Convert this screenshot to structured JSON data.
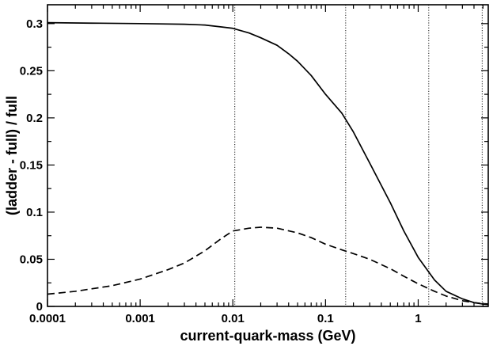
{
  "chart_data": {
    "type": "line",
    "title": "",
    "xlabel": "current-quark-mass (GeV)",
    "ylabel": "(ladder - full) / full",
    "xscale": "log",
    "xlim": [
      0.0001,
      5.7
    ],
    "ylim": [
      0,
      0.32
    ],
    "grid": false,
    "x_ticks": [
      {
        "value": 0.0001,
        "label": "0.0001"
      },
      {
        "value": 0.001,
        "label": "0.001"
      },
      {
        "value": 0.01,
        "label": "0.01"
      },
      {
        "value": 0.1,
        "label": "0.1"
      },
      {
        "value": 1,
        "label": "1"
      }
    ],
    "y_ticks": [
      {
        "value": 0,
        "label": "0"
      },
      {
        "value": 0.05,
        "label": "0.05"
      },
      {
        "value": 0.1,
        "label": "0.1"
      },
      {
        "value": 0.15,
        "label": "0.15"
      },
      {
        "value": 0.2,
        "label": "0.2"
      },
      {
        "value": 0.25,
        "label": "0.25"
      },
      {
        "value": 0.3,
        "label": "0.3"
      }
    ],
    "reference_lines_x": [
      0.0105,
      0.165,
      1.3,
      4.9
    ],
    "series": [
      {
        "style": "solid",
        "x": [
          0.0001,
          0.0003,
          0.001,
          0.003,
          0.005,
          0.0075,
          0.01,
          0.015,
          0.02,
          0.03,
          0.04,
          0.05,
          0.07,
          0.1,
          0.15,
          0.2,
          0.3,
          0.5,
          0.7,
          1.0,
          1.5,
          2.0,
          3.0,
          4.0,
          5.0,
          5.7
        ],
        "y": [
          0.301,
          0.3005,
          0.3,
          0.2993,
          0.2985,
          0.2965,
          0.295,
          0.29,
          0.285,
          0.277,
          0.268,
          0.26,
          0.245,
          0.225,
          0.205,
          0.185,
          0.152,
          0.11,
          0.08,
          0.052,
          0.028,
          0.016,
          0.008,
          0.004,
          0.0025,
          0.002
        ]
      },
      {
        "style": "dashed",
        "x": [
          0.0001,
          0.0002,
          0.0005,
          0.001,
          0.002,
          0.003,
          0.005,
          0.0075,
          0.01,
          0.015,
          0.02,
          0.03,
          0.05,
          0.07,
          0.1,
          0.15,
          0.2,
          0.3,
          0.5,
          0.7,
          1.0,
          1.5,
          2.0,
          3.0,
          4.0,
          5.0,
          5.7
        ],
        "y": [
          0.013,
          0.016,
          0.022,
          0.029,
          0.039,
          0.046,
          0.059,
          0.072,
          0.08,
          0.083,
          0.084,
          0.083,
          0.078,
          0.073,
          0.066,
          0.06,
          0.056,
          0.05,
          0.04,
          0.032,
          0.024,
          0.016,
          0.011,
          0.006,
          0.004,
          0.003,
          0.0025
        ]
      }
    ]
  }
}
